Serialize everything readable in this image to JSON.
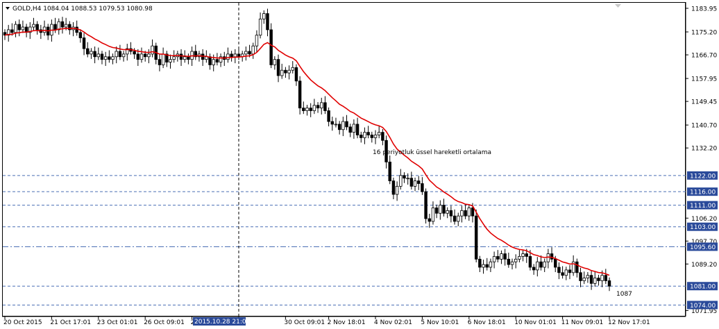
{
  "window": {
    "header_text": "GOLD,H4  1084.04 1088.53 1079.53 1080.98"
  },
  "chart_data": {
    "type": "candlestick",
    "symbol": "GOLD",
    "timeframe": "H4",
    "ohlc_current": {
      "open": 1084.04,
      "high": 1088.53,
      "low": 1079.53,
      "close": 1080.98
    },
    "ylim": [
      1070.0,
      1186.0
    ],
    "y_ticks": [
      "1183.95",
      "1175.20",
      "1166.70",
      "1157.95",
      "1149.45",
      "1140.70",
      "1132.20",
      "1106.20",
      "1097.70",
      "1089.20",
      "1071.95"
    ],
    "x_tick_labels": [
      "20 Oct 2015",
      "21 Oct 17:01",
      "23 Oct 01:01",
      "26 Oct 09:01",
      "27 O",
      "2015.10.28 21:01",
      "30 Oct 09:01",
      "2 Nov 18:01",
      "4 Nov 02:01",
      "5 Nov 10:01",
      "6 Nov 18:01",
      "10 Nov 01:01",
      "11 Nov 09:01",
      "12 Nov 17:01"
    ],
    "crosshair_time": "2015.10.28 21:01",
    "horizontal_levels": [
      {
        "price": 1122.0,
        "label": "1122.00",
        "style": "dashed"
      },
      {
        "price": 1116.0,
        "label": "1116.00",
        "style": "dashed"
      },
      {
        "price": 1111.0,
        "label": "1111.00",
        "style": "dashed"
      },
      {
        "price": 1103.0,
        "label": "1103.00",
        "style": "dashed"
      },
      {
        "price": 1095.6,
        "label": "1095.60",
        "style": "dashdot"
      },
      {
        "price": 1081.0,
        "label": "1081.00",
        "style": "dashed"
      },
      {
        "price": 1074.0,
        "label": "1074.00",
        "style": "dashed"
      }
    ],
    "annotations": [
      {
        "text": "16 periyotluk üssel hareketli ortalama"
      },
      {
        "text": "1087"
      }
    ],
    "closes": [
      1174,
      1176,
      1175,
      1178,
      1176,
      1177,
      1175,
      1177,
      1178,
      1176,
      1175,
      1177,
      1174,
      1178,
      1176,
      1179,
      1177,
      1178,
      1176,
      1177,
      1175,
      1173,
      1169,
      1167,
      1168,
      1166,
      1167,
      1165,
      1166,
      1165,
      1166,
      1168,
      1166,
      1167,
      1169,
      1168,
      1167,
      1165,
      1167,
      1166,
      1167,
      1170,
      1165,
      1163,
      1167,
      1164,
      1165,
      1166,
      1167,
      1165,
      1166,
      1165,
      1168,
      1166,
      1167,
      1165,
      1166,
      1163,
      1165,
      1164,
      1166,
      1165,
      1167,
      1166,
      1167,
      1166,
      1167,
      1168,
      1167,
      1170,
      1174,
      1180,
      1182,
      1176,
      1163,
      1165,
      1159,
      1161,
      1160,
      1161,
      1162,
      1157,
      1147,
      1146,
      1147,
      1146,
      1148,
      1147,
      1149,
      1146,
      1142,
      1141,
      1141,
      1139,
      1142,
      1140,
      1138,
      1141,
      1137,
      1136,
      1138,
      1137,
      1136,
      1137,
      1138,
      1135,
      1127,
      1120,
      1115,
      1118,
      1122,
      1121,
      1121,
      1118,
      1120,
      1119,
      1116,
      1106,
      1105,
      1110,
      1108,
      1111,
      1108,
      1109,
      1107,
      1105,
      1107,
      1109,
      1107,
      1110,
      1107,
      1091,
      1088,
      1089,
      1088,
      1090,
      1092,
      1091,
      1093,
      1091,
      1089,
      1090,
      1091,
      1092,
      1093,
      1092,
      1088,
      1087,
      1090,
      1088,
      1090,
      1093,
      1091,
      1088,
      1086,
      1085,
      1087,
      1086,
      1090,
      1086,
      1083,
      1084,
      1085,
      1082,
      1084,
      1083,
      1085,
      1083,
      1081
    ],
    "ema": {
      "period": 16,
      "color": "#e00000"
    },
    "colors": {
      "background": "#ffffff",
      "grid": "#000000",
      "candle_up": "#ffffff",
      "candle_down": "#000000",
      "ema_line": "#e00000",
      "level_line": "#4a6fb5",
      "label_box": "#2a4a9a",
      "label_text": "#ffffff"
    }
  }
}
